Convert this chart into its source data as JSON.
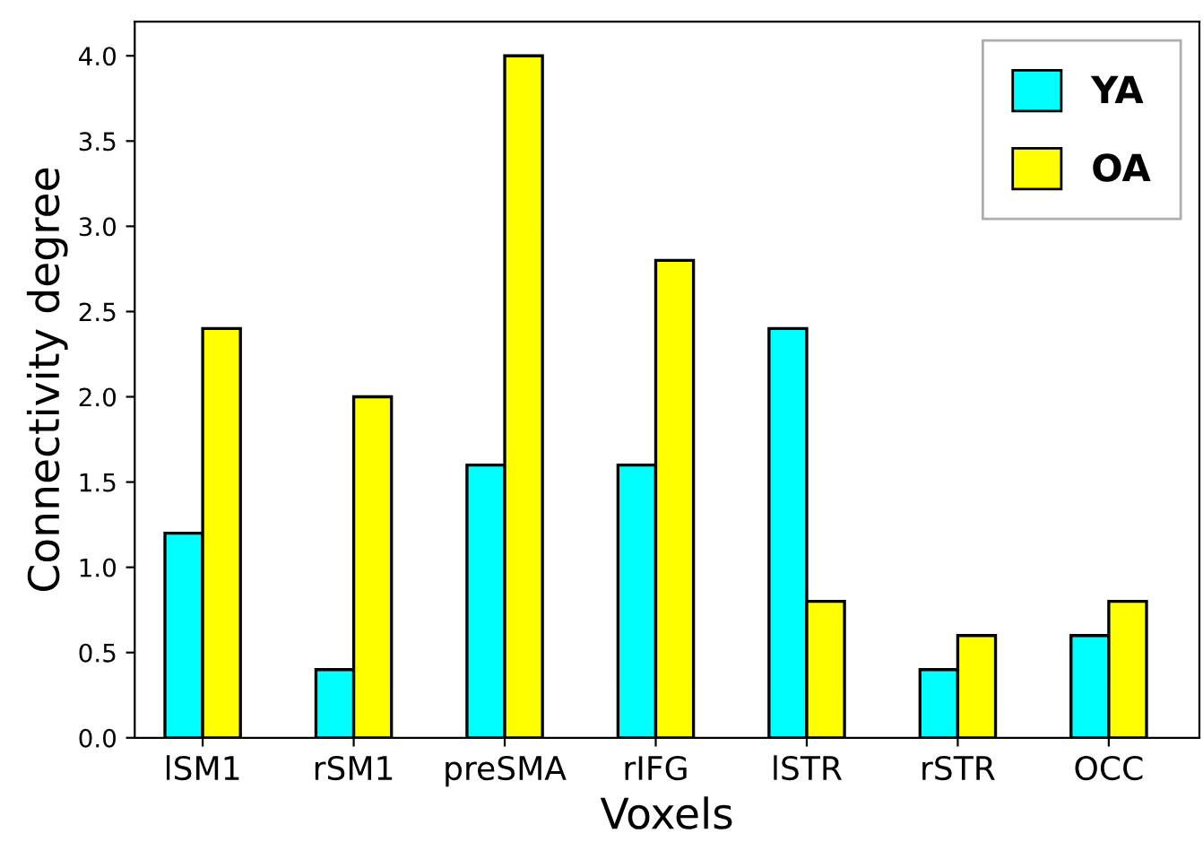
{
  "chart_data": {
    "type": "bar",
    "xlabel": "Voxels",
    "ylabel": "Connectivity degree",
    "categories": [
      "lSM1",
      "rSM1",
      "preSMA",
      "rIFG",
      "lSTR",
      "rSTR",
      "OCC"
    ],
    "series": [
      {
        "name": "YA",
        "color": "#00ffff",
        "values": [
          1.2,
          0.4,
          1.6,
          1.6,
          2.4,
          0.4,
          0.6
        ]
      },
      {
        "name": "OA",
        "color": "#ffff00",
        "values": [
          2.4,
          2.0,
          4.0,
          2.8,
          0.8,
          0.6,
          0.8
        ]
      }
    ],
    "ylim": [
      0,
      4.2
    ],
    "yticks": [
      {
        "value": 0,
        "label": "0.0"
      },
      0.5,
      {
        "value": 1,
        "label": "1.0"
      },
      1.5,
      {
        "value": 2,
        "label": "2.0"
      },
      2.5,
      {
        "value": 3,
        "label": "3.0"
      },
      3.5,
      {
        "value": 4,
        "label": "4.0"
      }
    ],
    "grid": false,
    "legend": "top right"
  }
}
